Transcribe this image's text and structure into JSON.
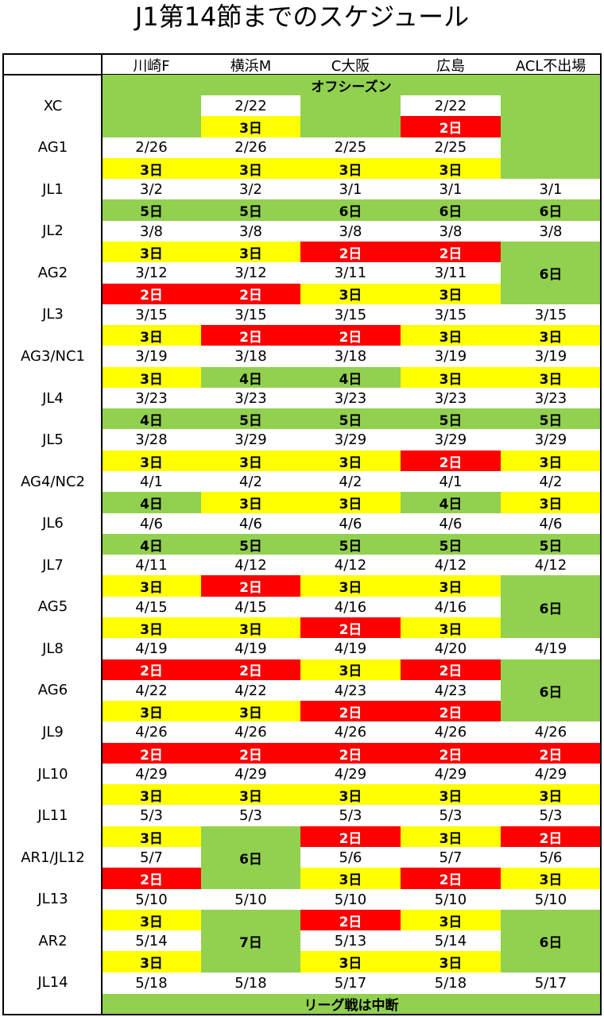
{
  "title": "J1第14節までのスケジュール",
  "headers": [
    "川崎F",
    "横浜M",
    "C大阪",
    "広島",
    "ACL不出場"
  ],
  "fills": {
    "W": {
      "bg": "#ffffff",
      "fg": "#000000"
    },
    "Y": {
      "bg": "#ffff00",
      "fg": "#000000"
    },
    "R": {
      "bg": "#ff0000",
      "fg": "#ffffff"
    },
    "G": {
      "bg": "#92d050",
      "fg": "#000000"
    }
  },
  "top_banner": "オフシーズン",
  "bottom_banner": "リーグ戦は中断",
  "banner_fill": "G",
  "rows": [
    {
      "label": "XC",
      "cells": [
        [
          "G"
        ],
        [
          "W",
          "2/22"
        ],
        [
          "G"
        ],
        [
          "W",
          "2/22"
        ],
        [
          "G"
        ]
      ]
    },
    {
      "cells": [
        [
          "G"
        ],
        [
          "Y",
          "3日"
        ],
        [
          "G"
        ],
        [
          "R",
          "2日"
        ],
        [
          "G"
        ]
      ]
    },
    {
      "label": "AG1",
      "cells": [
        [
          "W",
          "2/26"
        ],
        [
          "W",
          "2/26"
        ],
        [
          "W",
          "2/25"
        ],
        [
          "W",
          "2/25"
        ],
        [
          "G"
        ]
      ]
    },
    {
      "cells": [
        [
          "Y",
          "3日"
        ],
        [
          "Y",
          "3日"
        ],
        [
          "Y",
          "3日"
        ],
        [
          "Y",
          "3日"
        ],
        [
          "G"
        ]
      ]
    },
    {
      "label": "JL1",
      "cells": [
        [
          "W",
          "3/2"
        ],
        [
          "W",
          "3/2"
        ],
        [
          "W",
          "3/1"
        ],
        [
          "W",
          "3/1"
        ],
        [
          "W",
          "3/1"
        ]
      ]
    },
    {
      "cells": [
        [
          "G",
          "5日"
        ],
        [
          "G",
          "5日"
        ],
        [
          "G",
          "6日"
        ],
        [
          "G",
          "6日"
        ],
        [
          "G",
          "6日"
        ]
      ]
    },
    {
      "label": "JL2",
      "cells": [
        [
          "W",
          "3/8"
        ],
        [
          "W",
          "3/8"
        ],
        [
          "W",
          "3/8"
        ],
        [
          "W",
          "3/8"
        ],
        [
          "W",
          "3/8"
        ]
      ]
    },
    {
      "cells": [
        [
          "Y",
          "3日"
        ],
        [
          "Y",
          "3日"
        ],
        [
          "R",
          "2日"
        ],
        [
          "R",
          "2日"
        ],
        [
          "G"
        ]
      ]
    },
    {
      "label": "AG2",
      "cells": [
        [
          "W",
          "3/12"
        ],
        [
          "W",
          "3/12"
        ],
        [
          "W",
          "3/11"
        ],
        [
          "W",
          "3/11"
        ],
        [
          "G",
          "6日"
        ]
      ]
    },
    {
      "cells": [
        [
          "R",
          "2日"
        ],
        [
          "R",
          "2日"
        ],
        [
          "Y",
          "3日"
        ],
        [
          "Y",
          "3日"
        ],
        [
          "G"
        ]
      ]
    },
    {
      "label": "JL3",
      "cells": [
        [
          "W",
          "3/15"
        ],
        [
          "W",
          "3/15"
        ],
        [
          "W",
          "3/15"
        ],
        [
          "W",
          "3/15"
        ],
        [
          "W",
          "3/15"
        ]
      ]
    },
    {
      "cells": [
        [
          "Y",
          "3日"
        ],
        [
          "R",
          "2日"
        ],
        [
          "R",
          "2日"
        ],
        [
          "Y",
          "3日"
        ],
        [
          "Y",
          "3日"
        ]
      ]
    },
    {
      "label": "AG3/NC1",
      "cells": [
        [
          "W",
          "3/19"
        ],
        [
          "W",
          "3/18"
        ],
        [
          "W",
          "3/18"
        ],
        [
          "W",
          "3/19"
        ],
        [
          "W",
          "3/19"
        ]
      ]
    },
    {
      "cells": [
        [
          "Y",
          "3日"
        ],
        [
          "G",
          "4日"
        ],
        [
          "G",
          "4日"
        ],
        [
          "Y",
          "3日"
        ],
        [
          "Y",
          "3日"
        ]
      ]
    },
    {
      "label": "JL4",
      "cells": [
        [
          "W",
          "3/23"
        ],
        [
          "W",
          "3/23"
        ],
        [
          "W",
          "3/23"
        ],
        [
          "W",
          "3/23"
        ],
        [
          "W",
          "3/23"
        ]
      ]
    },
    {
      "cells": [
        [
          "G",
          "4日"
        ],
        [
          "G",
          "5日"
        ],
        [
          "G",
          "5日"
        ],
        [
          "G",
          "5日"
        ],
        [
          "G",
          "5日"
        ]
      ]
    },
    {
      "label": "JL5",
      "cells": [
        [
          "W",
          "3/28"
        ],
        [
          "W",
          "3/29"
        ],
        [
          "W",
          "3/29"
        ],
        [
          "W",
          "3/29"
        ],
        [
          "W",
          "3/29"
        ]
      ]
    },
    {
      "cells": [
        [
          "Y",
          "3日"
        ],
        [
          "Y",
          "3日"
        ],
        [
          "Y",
          "3日"
        ],
        [
          "R",
          "2日"
        ],
        [
          "Y",
          "3日"
        ]
      ]
    },
    {
      "label": "AG4/NC2",
      "cells": [
        [
          "W",
          "4/1"
        ],
        [
          "W",
          "4/2"
        ],
        [
          "W",
          "4/2"
        ],
        [
          "W",
          "4/1"
        ],
        [
          "W",
          "4/2"
        ]
      ]
    },
    {
      "cells": [
        [
          "G",
          "4日"
        ],
        [
          "Y",
          "3日"
        ],
        [
          "Y",
          "3日"
        ],
        [
          "G",
          "4日"
        ],
        [
          "Y",
          "3日"
        ]
      ]
    },
    {
      "label": "JL6",
      "cells": [
        [
          "W",
          "4/6"
        ],
        [
          "W",
          "4/6"
        ],
        [
          "W",
          "4/6"
        ],
        [
          "W",
          "4/6"
        ],
        [
          "W",
          "4/6"
        ]
      ]
    },
    {
      "cells": [
        [
          "G",
          "4日"
        ],
        [
          "G",
          "5日"
        ],
        [
          "G",
          "5日"
        ],
        [
          "G",
          "5日"
        ],
        [
          "G",
          "5日"
        ]
      ]
    },
    {
      "label": "JL7",
      "cells": [
        [
          "W",
          "4/11"
        ],
        [
          "W",
          "4/12"
        ],
        [
          "W",
          "4/12"
        ],
        [
          "W",
          "4/12"
        ],
        [
          "W",
          "4/12"
        ]
      ]
    },
    {
      "cells": [
        [
          "Y",
          "3日"
        ],
        [
          "R",
          "2日"
        ],
        [
          "Y",
          "3日"
        ],
        [
          "Y",
          "3日"
        ],
        [
          "G"
        ]
      ]
    },
    {
      "label": "AG5",
      "cells": [
        [
          "W",
          "4/15"
        ],
        [
          "W",
          "4/15"
        ],
        [
          "W",
          "4/16"
        ],
        [
          "W",
          "4/16"
        ],
        [
          "G",
          "6日"
        ]
      ]
    },
    {
      "cells": [
        [
          "Y",
          "3日"
        ],
        [
          "Y",
          "3日"
        ],
        [
          "R",
          "2日"
        ],
        [
          "Y",
          "3日"
        ],
        [
          "G"
        ]
      ]
    },
    {
      "label": "JL8",
      "cells": [
        [
          "W",
          "4/19"
        ],
        [
          "W",
          "4/19"
        ],
        [
          "W",
          "4/19"
        ],
        [
          "W",
          "4/20"
        ],
        [
          "W",
          "4/19"
        ]
      ]
    },
    {
      "cells": [
        [
          "R",
          "2日"
        ],
        [
          "R",
          "2日"
        ],
        [
          "Y",
          "3日"
        ],
        [
          "R",
          "2日"
        ],
        [
          "G"
        ]
      ]
    },
    {
      "label": "AG6",
      "cells": [
        [
          "W",
          "4/22"
        ],
        [
          "W",
          "4/22"
        ],
        [
          "W",
          "4/23"
        ],
        [
          "W",
          "4/23"
        ],
        [
          "G",
          "6日"
        ]
      ]
    },
    {
      "cells": [
        [
          "Y",
          "3日"
        ],
        [
          "Y",
          "3日"
        ],
        [
          "R",
          "2日"
        ],
        [
          "R",
          "2日"
        ],
        [
          "G"
        ]
      ]
    },
    {
      "label": "JL9",
      "cells": [
        [
          "W",
          "4/26"
        ],
        [
          "W",
          "4/26"
        ],
        [
          "W",
          "4/26"
        ],
        [
          "W",
          "4/26"
        ],
        [
          "W",
          "4/26"
        ]
      ]
    },
    {
      "cells": [
        [
          "R",
          "2日"
        ],
        [
          "R",
          "2日"
        ],
        [
          "R",
          "2日"
        ],
        [
          "R",
          "2日"
        ],
        [
          "R",
          "2日"
        ]
      ]
    },
    {
      "label": "JL10",
      "cells": [
        [
          "W",
          "4/29"
        ],
        [
          "W",
          "4/29"
        ],
        [
          "W",
          "4/29"
        ],
        [
          "W",
          "4/29"
        ],
        [
          "W",
          "4/29"
        ]
      ]
    },
    {
      "cells": [
        [
          "Y",
          "3日"
        ],
        [
          "Y",
          "3日"
        ],
        [
          "Y",
          "3日"
        ],
        [
          "Y",
          "3日"
        ],
        [
          "Y",
          "3日"
        ]
      ]
    },
    {
      "label": "JL11",
      "cells": [
        [
          "W",
          "5/3"
        ],
        [
          "W",
          "5/3"
        ],
        [
          "W",
          "5/3"
        ],
        [
          "W",
          "5/3"
        ],
        [
          "W",
          "5/3"
        ]
      ]
    },
    {
      "cells": [
        [
          "Y",
          "3日"
        ],
        [
          "G"
        ],
        [
          "R",
          "2日"
        ],
        [
          "Y",
          "3日"
        ],
        [
          "R",
          "2日"
        ]
      ]
    },
    {
      "label": "AR1/JL12",
      "cells": [
        [
          "W",
          "5/7"
        ],
        [
          "G",
          "6日"
        ],
        [
          "W",
          "5/6"
        ],
        [
          "W",
          "5/7"
        ],
        [
          "W",
          "5/6"
        ]
      ]
    },
    {
      "cells": [
        [
          "R",
          "2日"
        ],
        [
          "G"
        ],
        [
          "Y",
          "3日"
        ],
        [
          "R",
          "2日"
        ],
        [
          "Y",
          "3日"
        ]
      ]
    },
    {
      "label": "JL13",
      "cells": [
        [
          "W",
          "5/10"
        ],
        [
          "W",
          "5/10"
        ],
        [
          "W",
          "5/10"
        ],
        [
          "W",
          "5/10"
        ],
        [
          "W",
          "5/10"
        ]
      ]
    },
    {
      "cells": [
        [
          "Y",
          "3日"
        ],
        [
          "G"
        ],
        [
          "R",
          "2日"
        ],
        [
          "Y",
          "3日"
        ],
        [
          "G"
        ]
      ]
    },
    {
      "label": "AR2",
      "cells": [
        [
          "W",
          "5/14"
        ],
        [
          "G",
          "7日"
        ],
        [
          "W",
          "5/13"
        ],
        [
          "W",
          "5/14"
        ],
        [
          "G",
          "6日"
        ]
      ]
    },
    {
      "cells": [
        [
          "Y",
          "3日"
        ],
        [
          "G"
        ],
        [
          "Y",
          "3日"
        ],
        [
          "Y",
          "3日"
        ],
        [
          "G"
        ]
      ]
    },
    {
      "label": "JL14",
      "cells": [
        [
          "W",
          "5/18"
        ],
        [
          "W",
          "5/18"
        ],
        [
          "W",
          "5/17"
        ],
        [
          "W",
          "5/18"
        ],
        [
          "W",
          "5/17"
        ]
      ]
    }
  ]
}
